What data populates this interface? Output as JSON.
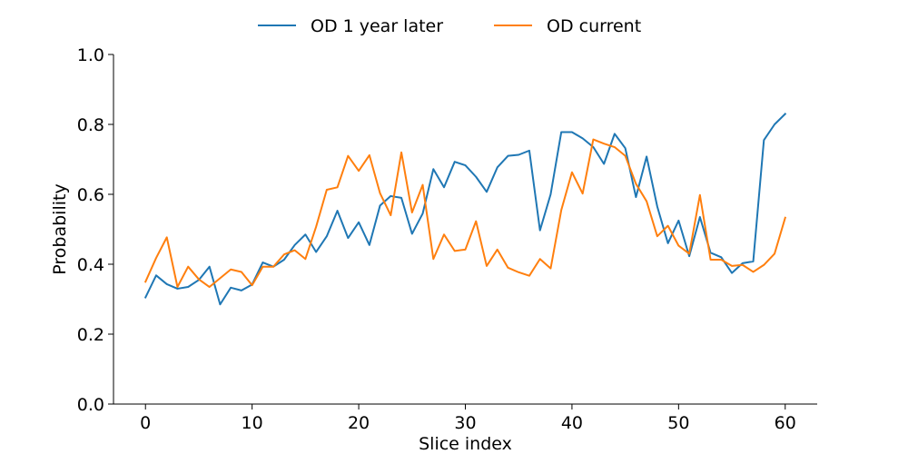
{
  "chart_data": {
    "type": "line",
    "title": "",
    "xlabel": "Slice index",
    "ylabel": "Probability",
    "xlim": [
      -3,
      63
    ],
    "ylim": [
      0.0,
      1.0
    ],
    "xticks": [
      0,
      10,
      20,
      30,
      40,
      50,
      60
    ],
    "xtick_labels": [
      "0",
      "10",
      "20",
      "30",
      "40",
      "50",
      "60"
    ],
    "yticks": [
      0.0,
      0.2,
      0.4,
      0.6,
      0.8,
      1.0
    ],
    "ytick_labels": [
      "0.0",
      "0.2",
      "0.4",
      "0.6",
      "0.8",
      "1.0"
    ],
    "grid": false,
    "legend_position": "top-center",
    "x": [
      0,
      1,
      2,
      3,
      4,
      5,
      6,
      7,
      8,
      9,
      10,
      11,
      12,
      13,
      14,
      15,
      16,
      17,
      18,
      19,
      20,
      21,
      22,
      23,
      24,
      25,
      26,
      27,
      28,
      29,
      30,
      31,
      32,
      33,
      34,
      35,
      36,
      37,
      38,
      39,
      40,
      41,
      42,
      43,
      44,
      45,
      46,
      47,
      48,
      49,
      50,
      51,
      52,
      53,
      54,
      55,
      56,
      57,
      58,
      59,
      60
    ],
    "series": [
      {
        "name": "OD 1 year later",
        "color": "#1f77b4",
        "values": [
          0.305,
          0.368,
          0.343,
          0.33,
          0.335,
          0.355,
          0.393,
          0.285,
          0.333,
          0.325,
          0.342,
          0.405,
          0.393,
          0.413,
          0.455,
          0.485,
          0.435,
          0.48,
          0.553,
          0.475,
          0.52,
          0.455,
          0.568,
          0.595,
          0.59,
          0.487,
          0.545,
          0.672,
          0.62,
          0.693,
          0.683,
          0.65,
          0.607,
          0.677,
          0.71,
          0.713,
          0.725,
          0.497,
          0.6,
          0.778,
          0.778,
          0.76,
          0.735,
          0.687,
          0.773,
          0.732,
          0.592,
          0.708,
          0.565,
          0.46,
          0.525,
          0.423,
          0.535,
          0.433,
          0.42,
          0.375,
          0.403,
          0.408,
          0.755,
          0.8,
          0.83
        ]
      },
      {
        "name": "OD current",
        "color": "#ff7f0e",
        "values": [
          0.35,
          0.418,
          0.477,
          0.335,
          0.393,
          0.357,
          0.335,
          0.36,
          0.385,
          0.378,
          0.34,
          0.393,
          0.393,
          0.428,
          0.44,
          0.415,
          0.507,
          0.613,
          0.62,
          0.71,
          0.667,
          0.712,
          0.603,
          0.54,
          0.72,
          0.548,
          0.627,
          0.415,
          0.485,
          0.438,
          0.442,
          0.523,
          0.395,
          0.442,
          0.39,
          0.377,
          0.367,
          0.415,
          0.388,
          0.555,
          0.663,
          0.602,
          0.757,
          0.745,
          0.735,
          0.71,
          0.63,
          0.58,
          0.48,
          0.51,
          0.453,
          0.43,
          0.598,
          0.413,
          0.413,
          0.395,
          0.398,
          0.378,
          0.398,
          0.43,
          0.533
        ]
      }
    ]
  }
}
